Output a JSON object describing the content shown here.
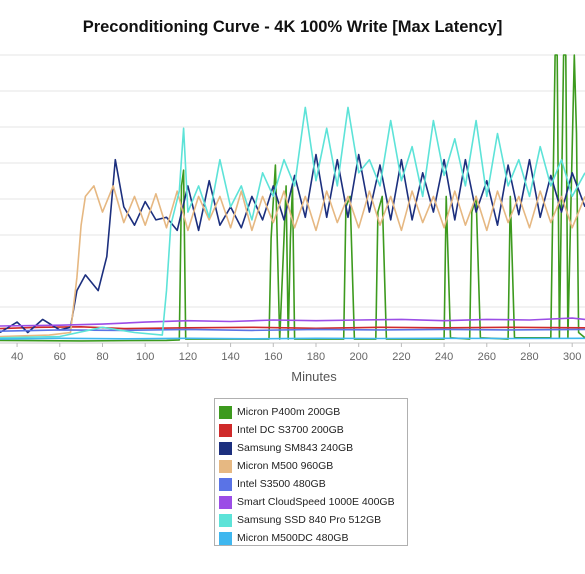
{
  "chart_data": {
    "type": "line",
    "title": "Preconditioning Curve - 4K 100% Write [Max Latency]",
    "xlabel": "Minutes",
    "ylabel": "",
    "xlim": [
      32,
      306
    ],
    "ylim": [
      0,
      1100
    ],
    "x_ticks": [
      40,
      60,
      80,
      100,
      120,
      140,
      160,
      180,
      200,
      220,
      240,
      260,
      280,
      300
    ],
    "grid": true,
    "legend_position": "bottom-center",
    "series": [
      {
        "name": "Micron P400m 200GB",
        "color": "#3d9a1e",
        "points": [
          [
            32,
            10
          ],
          [
            70,
            8
          ],
          [
            110,
            10
          ],
          [
            116,
            12
          ],
          [
            117,
            600
          ],
          [
            118,
            660
          ],
          [
            119,
            15
          ],
          [
            158,
            15
          ],
          [
            159,
            400
          ],
          [
            161,
            680
          ],
          [
            163,
            15
          ],
          [
            165,
            400
          ],
          [
            166,
            600
          ],
          [
            167,
            15
          ],
          [
            168,
            400
          ],
          [
            169,
            600
          ],
          [
            170,
            15
          ],
          [
            193,
            15
          ],
          [
            194,
            520
          ],
          [
            196,
            560
          ],
          [
            198,
            15
          ],
          [
            208,
            15
          ],
          [
            209,
            500
          ],
          [
            211,
            560
          ],
          [
            213,
            15
          ],
          [
            240,
            15
          ],
          [
            241,
            560
          ],
          [
            243,
            20
          ],
          [
            252,
            15
          ],
          [
            253,
            500
          ],
          [
            255,
            560
          ],
          [
            257,
            20
          ],
          [
            270,
            15
          ],
          [
            271,
            560
          ],
          [
            273,
            20
          ],
          [
            290,
            20
          ],
          [
            292,
            1100
          ],
          [
            293,
            1100
          ],
          [
            294,
            20
          ],
          [
            296,
            1100
          ],
          [
            297,
            1100
          ],
          [
            298,
            20
          ],
          [
            301,
            1100
          ],
          [
            302,
            800
          ],
          [
            303,
            40
          ],
          [
            306,
            20
          ]
        ]
      },
      {
        "name": "Intel DC S3700 200GB",
        "color": "#cf2a2a",
        "points": [
          [
            32,
            55
          ],
          [
            50,
            60
          ],
          [
            70,
            62
          ],
          [
            90,
            55
          ],
          [
            120,
            58
          ],
          [
            150,
            60
          ],
          [
            180,
            56
          ],
          [
            210,
            60
          ],
          [
            240,
            58
          ],
          [
            270,
            60
          ],
          [
            306,
            58
          ]
        ]
      },
      {
        "name": "Samsung SM843 240GB",
        "color": "#1c2f7e",
        "points": [
          [
            32,
            40
          ],
          [
            40,
            80
          ],
          [
            45,
            40
          ],
          [
            52,
            90
          ],
          [
            60,
            50
          ],
          [
            65,
            60
          ],
          [
            68,
            200
          ],
          [
            72,
            260
          ],
          [
            78,
            200
          ],
          [
            82,
            330
          ],
          [
            86,
            700
          ],
          [
            90,
            520
          ],
          [
            95,
            450
          ],
          [
            100,
            540
          ],
          [
            105,
            470
          ],
          [
            110,
            480
          ],
          [
            115,
            430
          ],
          [
            120,
            600
          ],
          [
            125,
            430
          ],
          [
            130,
            620
          ],
          [
            135,
            450
          ],
          [
            140,
            520
          ],
          [
            145,
            440
          ],
          [
            150,
            560
          ],
          [
            155,
            470
          ],
          [
            160,
            600
          ],
          [
            165,
            470
          ],
          [
            170,
            640
          ],
          [
            175,
            480
          ],
          [
            180,
            720
          ],
          [
            185,
            480
          ],
          [
            190,
            700
          ],
          [
            195,
            480
          ],
          [
            200,
            720
          ],
          [
            205,
            500
          ],
          [
            210,
            680
          ],
          [
            215,
            470
          ],
          [
            220,
            700
          ],
          [
            225,
            470
          ],
          [
            230,
            650
          ],
          [
            235,
            500
          ],
          [
            240,
            700
          ],
          [
            245,
            470
          ],
          [
            250,
            700
          ],
          [
            255,
            500
          ],
          [
            260,
            620
          ],
          [
            265,
            450
          ],
          [
            270,
            680
          ],
          [
            275,
            490
          ],
          [
            280,
            700
          ],
          [
            285,
            480
          ],
          [
            290,
            640
          ],
          [
            295,
            500
          ],
          [
            300,
            650
          ],
          [
            306,
            520
          ]
        ]
      },
      {
        "name": "Micron M500 960GB",
        "color": "#e6b882",
        "points": [
          [
            32,
            25
          ],
          [
            55,
            30
          ],
          [
            65,
            40
          ],
          [
            68,
            250
          ],
          [
            70,
            450
          ],
          [
            72,
            560
          ],
          [
            76,
            600
          ],
          [
            80,
            500
          ],
          [
            85,
            600
          ],
          [
            90,
            460
          ],
          [
            95,
            560
          ],
          [
            100,
            450
          ],
          [
            105,
            570
          ],
          [
            110,
            440
          ],
          [
            115,
            580
          ],
          [
            120,
            430
          ],
          [
            125,
            560
          ],
          [
            130,
            470
          ],
          [
            135,
            560
          ],
          [
            140,
            440
          ],
          [
            145,
            580
          ],
          [
            150,
            430
          ],
          [
            155,
            560
          ],
          [
            160,
            460
          ],
          [
            165,
            580
          ],
          [
            170,
            440
          ],
          [
            175,
            560
          ],
          [
            180,
            430
          ],
          [
            185,
            580
          ],
          [
            190,
            460
          ],
          [
            195,
            560
          ],
          [
            200,
            440
          ],
          [
            205,
            580
          ],
          [
            210,
            450
          ],
          [
            215,
            560
          ],
          [
            220,
            430
          ],
          [
            225,
            580
          ],
          [
            230,
            460
          ],
          [
            235,
            560
          ],
          [
            240,
            440
          ],
          [
            245,
            580
          ],
          [
            250,
            450
          ],
          [
            255,
            560
          ],
          [
            260,
            430
          ],
          [
            265,
            580
          ],
          [
            270,
            460
          ],
          [
            275,
            560
          ],
          [
            280,
            440
          ],
          [
            285,
            580
          ],
          [
            290,
            460
          ],
          [
            295,
            560
          ],
          [
            300,
            440
          ],
          [
            306,
            560
          ]
        ]
      },
      {
        "name": "Intel S3500 480GB",
        "color": "#5a73e6",
        "points": [
          [
            32,
            45
          ],
          [
            60,
            50
          ],
          [
            90,
            48
          ],
          [
            120,
            52
          ],
          [
            150,
            48
          ],
          [
            180,
            52
          ],
          [
            210,
            50
          ],
          [
            240,
            52
          ],
          [
            270,
            50
          ],
          [
            306,
            52
          ]
        ]
      },
      {
        "name": "Smart CloudSpeed 1000E 400GB",
        "color": "#9b4de6",
        "points": [
          [
            32,
            65
          ],
          [
            60,
            68
          ],
          [
            80,
            72
          ],
          [
            100,
            80
          ],
          [
            120,
            85
          ],
          [
            140,
            82
          ],
          [
            160,
            88
          ],
          [
            180,
            85
          ],
          [
            200,
            88
          ],
          [
            220,
            90
          ],
          [
            240,
            85
          ],
          [
            260,
            90
          ],
          [
            280,
            88
          ],
          [
            300,
            95
          ],
          [
            306,
            90
          ]
        ]
      },
      {
        "name": "Samsung SSD 840 Pro 512GB",
        "color": "#5de3d8",
        "points": [
          [
            32,
            20
          ],
          [
            60,
            25
          ],
          [
            80,
            60
          ],
          [
            95,
            40
          ],
          [
            108,
            30
          ],
          [
            110,
            200
          ],
          [
            112,
            450
          ],
          [
            116,
            580
          ],
          [
            118,
            820
          ],
          [
            120,
            500
          ],
          [
            125,
            600
          ],
          [
            130,
            480
          ],
          [
            135,
            700
          ],
          [
            140,
            520
          ],
          [
            145,
            600
          ],
          [
            150,
            470
          ],
          [
            155,
            650
          ],
          [
            160,
            560
          ],
          [
            165,
            700
          ],
          [
            170,
            600
          ],
          [
            175,
            900
          ],
          [
            180,
            620
          ],
          [
            185,
            820
          ],
          [
            190,
            600
          ],
          [
            195,
            900
          ],
          [
            200,
            650
          ],
          [
            205,
            700
          ],
          [
            210,
            600
          ],
          [
            215,
            850
          ],
          [
            220,
            620
          ],
          [
            225,
            750
          ],
          [
            230,
            560
          ],
          [
            235,
            850
          ],
          [
            240,
            640
          ],
          [
            245,
            780
          ],
          [
            250,
            600
          ],
          [
            255,
            850
          ],
          [
            260,
            560
          ],
          [
            265,
            800
          ],
          [
            270,
            600
          ],
          [
            275,
            700
          ],
          [
            280,
            560
          ],
          [
            285,
            750
          ],
          [
            290,
            600
          ],
          [
            295,
            700
          ],
          [
            300,
            560
          ],
          [
            306,
            650
          ]
        ]
      },
      {
        "name": "Micron M500DC 480GB",
        "color": "#3fb7ef",
        "points": [
          [
            32,
            15
          ],
          [
            60,
            18
          ],
          [
            90,
            16
          ],
          [
            120,
            18
          ],
          [
            150,
            16
          ],
          [
            180,
            18
          ],
          [
            210,
            17
          ],
          [
            240,
            18
          ],
          [
            270,
            17
          ],
          [
            306,
            18
          ]
        ]
      }
    ]
  }
}
